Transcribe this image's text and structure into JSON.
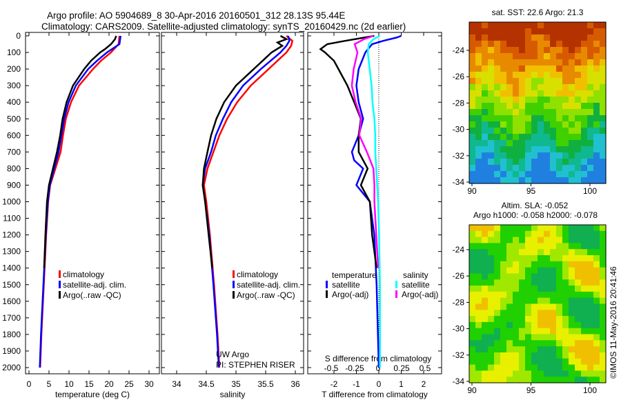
{
  "title": {
    "line1": "Argo profile: AO 5904689_8 30-Apr-2016 20160501_312 28.13S 95.44E",
    "line2": "Climatology: CARS2009. Satellite-adjusted climatology: synTS_20160429.nc (2d earlier)"
  },
  "credit": "©IMOS 11-May-2016 20:41:46",
  "chart_data": [
    {
      "type": "line",
      "id": "temperature",
      "xlabel": "temperature (deg C)",
      "xlim": [
        -1,
        32
      ],
      "xticks": [
        0,
        5,
        10,
        15,
        20,
        25,
        30
      ],
      "ylim": [
        0,
        2050
      ],
      "yticks": [
        0,
        100,
        200,
        300,
        400,
        500,
        600,
        700,
        800,
        900,
        1000,
        1100,
        1200,
        1300,
        1400,
        1500,
        1600,
        1700,
        1800,
        1900,
        2000
      ],
      "legend": [
        "climatology",
        "satellite-adj. clim.",
        "Argo(..raw -QC)"
      ],
      "series": [
        {
          "name": "climatology",
          "color": "#ff0000",
          "depth": [
            0,
            50,
            100,
            150,
            200,
            300,
            400,
            500,
            600,
            700,
            800,
            900,
            1000,
            1200,
            1500,
            1800,
            2000
          ],
          "values": [
            22.6,
            22.4,
            20.5,
            18,
            16,
            12.5,
            10.5,
            9.2,
            8.5,
            7.9,
            6.6,
            5.3,
            4.8,
            4.3,
            3.7,
            3.1,
            2.8
          ]
        },
        {
          "name": "satellite-adj. clim.",
          "color": "#0000ff",
          "depth": [
            0,
            50,
            100,
            150,
            200,
            300,
            400,
            500,
            600,
            700,
            800,
            900,
            1000,
            1200,
            1500,
            1800,
            2000
          ],
          "values": [
            22.9,
            22.6,
            19.5,
            17,
            14.8,
            11.7,
            9.9,
            8.8,
            8.1,
            7.4,
            6.3,
            5.2,
            4.7,
            4.2,
            3.6,
            3.0,
            2.7
          ]
        },
        {
          "name": "Argo(..raw -QC)",
          "color": "#000000",
          "depth": [
            0,
            20,
            50,
            80,
            100,
            150,
            200,
            300,
            400,
            500,
            600,
            700,
            800,
            900,
            1000,
            1200,
            1400
          ],
          "values": [
            21.8,
            21.5,
            20.5,
            19,
            17.8,
            15.5,
            13.8,
            11,
            9.4,
            8.4,
            7.8,
            7.0,
            6.0,
            5.0,
            4.5,
            4.1,
            3.8
          ]
        }
      ]
    },
    {
      "type": "line",
      "id": "salinity",
      "xlabel": "salinity",
      "xlim": [
        33.75,
        36.1
      ],
      "xticks": [
        34,
        34.5,
        35,
        35.5,
        36
      ],
      "legend": [
        "climatology",
        "satellite-adj. clim.",
        "Argo(..raw -QC)"
      ],
      "annotation": [
        "UW Argo",
        "PI: STEPHEN RISER"
      ],
      "series": [
        {
          "name": "climatology",
          "color": "#ff0000",
          "depth": [
            0,
            30,
            60,
            100,
            200,
            300,
            400,
            500,
            600,
            700,
            800,
            900,
            1000,
            1200,
            1500,
            1800,
            2000
          ],
          "values": [
            35.85,
            35.95,
            35.93,
            35.85,
            35.55,
            35.25,
            35.02,
            34.85,
            34.72,
            34.62,
            34.52,
            34.46,
            34.5,
            34.56,
            34.63,
            34.69,
            34.72
          ]
        },
        {
          "name": "satellite-adj. clim.",
          "color": "#0000ff",
          "depth": [
            0,
            30,
            60,
            100,
            200,
            300,
            400,
            500,
            600,
            700,
            800,
            900,
            1000,
            1200,
            1500,
            1800,
            2000
          ],
          "values": [
            35.88,
            35.9,
            35.85,
            35.75,
            35.42,
            35.12,
            34.92,
            34.78,
            34.66,
            34.58,
            34.48,
            34.44,
            34.48,
            34.55,
            34.62,
            34.68,
            34.71
          ]
        },
        {
          "name": "Argo(..raw -QC)",
          "color": "#000000",
          "depth": [
            0,
            20,
            40,
            60,
            100,
            200,
            300,
            400,
            500,
            600,
            700,
            800,
            900,
            1000,
            1200,
            1400
          ],
          "values": [
            35.75,
            35.85,
            35.7,
            35.78,
            35.6,
            35.3,
            35.0,
            34.8,
            34.67,
            34.58,
            34.52,
            34.46,
            34.44,
            34.48,
            34.54,
            34.6
          ]
        }
      ]
    },
    {
      "type": "line",
      "id": "difference",
      "xlabel": "T difference from climatology",
      "xlabel2": "S difference from climatology",
      "xlim": [
        -3,
        3
      ],
      "xticks": [
        -2,
        -1,
        0,
        1,
        2
      ],
      "xticks2": [
        -0.5,
        -0.25,
        0,
        0.25,
        0.5
      ],
      "legend_t": {
        "title": "temperature",
        "items": [
          "satellite",
          "Argo(-adj)"
        ]
      },
      "legend_s": {
        "title": "salinity",
        "items": [
          "satellite",
          "Argo(-adj)"
        ]
      },
      "series": [
        {
          "name": "T satellite",
          "var": "T",
          "color": "#0000ff",
          "depth": [
            0,
            10,
            30,
            50,
            100,
            200,
            300,
            400,
            500,
            600,
            700,
            750,
            800,
            900,
            1000,
            1200,
            1500,
            2000
          ],
          "values": [
            1.0,
            0.8,
            0.2,
            -0.3,
            -0.6,
            -0.9,
            -1.0,
            -0.9,
            -0.7,
            -0.9,
            -1.2,
            -1.1,
            -0.7,
            -1.0,
            -0.4,
            -0.2,
            -0.1,
            0
          ]
        },
        {
          "name": "T Argo(-adj)",
          "var": "T",
          "color": "#000000",
          "depth": [
            0,
            30,
            50,
            80,
            100,
            150,
            200,
            300,
            400,
            500,
            600,
            700,
            800,
            900,
            1000,
            1200,
            1400
          ],
          "values": [
            -0.2,
            -1.5,
            -2.3,
            -2.6,
            -2.4,
            -2.0,
            -1.8,
            -1.4,
            -1.1,
            -0.8,
            -0.9,
            -0.9,
            -0.5,
            -0.8,
            -0.4,
            -0.3,
            -0.1
          ]
        },
        {
          "name": "S satellite",
          "var": "S",
          "color": "#00ffff",
          "depth": [
            0,
            20,
            50,
            100,
            200,
            300,
            400,
            500,
            600,
            700,
            800,
            1000,
            1200,
            1500,
            2000
          ],
          "values": [
            0.02,
            -0.05,
            -0.1,
            -0.11,
            -0.09,
            -0.07,
            -0.06,
            -0.04,
            -0.03,
            -0.03,
            -0.02,
            0,
            0.01,
            0.02,
            0.02
          ]
        },
        {
          "name": "S Argo(-adj)",
          "var": "S",
          "color": "#ff00ff",
          "depth": [
            0,
            20,
            50,
            100,
            200,
            300,
            400,
            500,
            600,
            700,
            800,
            900,
            1000,
            1200,
            1400
          ],
          "values": [
            -0.05,
            -0.15,
            -0.25,
            -0.22,
            -0.26,
            -0.28,
            -0.24,
            -0.18,
            -0.2,
            -0.12,
            -0.05,
            -0.04,
            -0.04,
            -0.02,
            0
          ]
        }
      ]
    },
    {
      "type": "heatmap",
      "id": "sst-map",
      "title": "sat. SST: 22.6  Argo: 21.3",
      "xticks": [
        90,
        95,
        100
      ],
      "yticks": [
        -24,
        -26,
        -28,
        -30,
        -32,
        -34
      ]
    },
    {
      "type": "heatmap",
      "id": "sla-map",
      "title": "Altim. SLA: -0.052",
      "subtitle": "Argo h1000: -0.058 h2000: -0.078",
      "xticks": [
        90,
        95,
        100
      ],
      "yticks": [
        -24,
        -26,
        -28,
        -30,
        -32,
        -34
      ]
    }
  ]
}
